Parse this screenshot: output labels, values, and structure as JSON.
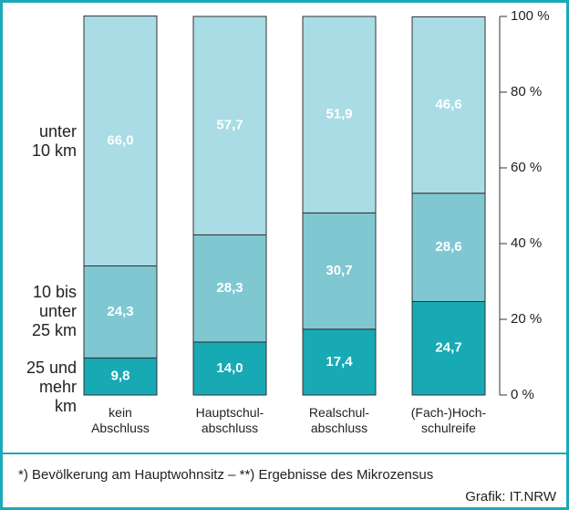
{
  "chart_data": {
    "type": "stacked_bar",
    "categories": [
      "kein\nAbschluss",
      "Hauptschul-\nabschluss",
      "Realschul-\nabschluss",
      "(Fach-)Hoch-\nschulreife"
    ],
    "series": [
      {
        "name": "25 und\nmehr\nkm",
        "color": "#17a9b4",
        "values": [
          9.8,
          14.0,
          17.4,
          24.7
        ],
        "value_labels": [
          "9,8",
          "14,0",
          "17,4",
          "24,7"
        ]
      },
      {
        "name": "10 bis\nunter\n25 km",
        "color": "#7fc8d2",
        "values": [
          24.3,
          28.3,
          30.7,
          28.6
        ],
        "value_labels": [
          "24,3",
          "28,3",
          "30,7",
          "28,6"
        ]
      },
      {
        "name": "unter\n10 km",
        "color": "#a9dce4",
        "values": [
          66.0,
          57.7,
          51.9,
          46.6
        ],
        "value_labels": [
          "66,0",
          "57,7",
          "51,9",
          "46,6"
        ]
      }
    ],
    "ylim": [
      0,
      100
    ],
    "yticks": [
      {
        "value": 0,
        "label": "0 %"
      },
      {
        "value": 20,
        "label": "20 %"
      },
      {
        "value": 40,
        "label": "40 %"
      },
      {
        "value": 60,
        "label": "60 %"
      },
      {
        "value": 80,
        "label": "80 %"
      },
      {
        "value": 100,
        "label": "100 %"
      }
    ],
    "footnote": "*) Bevölkerung am Hauptwohnsitz – **) Ergebnisse des Mikrozensus",
    "source": "Grafik: IT.NRW"
  }
}
